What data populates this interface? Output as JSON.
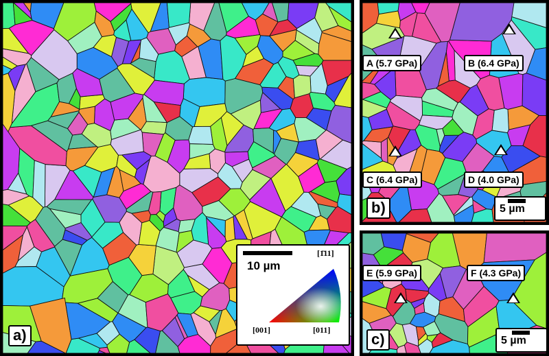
{
  "panels": {
    "a": {
      "letter": "a)"
    },
    "b": {
      "letter": "b)",
      "scale_label": "5 µm"
    },
    "c": {
      "letter": "c)",
      "scale_label": "5 µm"
    }
  },
  "scale_a": {
    "label": "10 µm"
  },
  "ipf": {
    "top": "[1̄11]",
    "left": "[001]",
    "right": "[011]"
  },
  "indents": [
    {
      "id": "A",
      "text": "A (5.7 GPa)"
    },
    {
      "id": "B",
      "text": "B (6.4 GPa)"
    },
    {
      "id": "C",
      "text": "C (6.4 GPa)"
    },
    {
      "id": "D",
      "text": "D (4.0 GPa)"
    },
    {
      "id": "E",
      "text": "E (5.9 GPa)"
    },
    {
      "id": "F",
      "text": "F (4.3 GPa)"
    }
  ],
  "grain_palette": [
    "#e8304a",
    "#f04fa0",
    "#ff2bd4",
    "#c83cf0",
    "#7a3cf5",
    "#3a4df0",
    "#2f8cf5",
    "#34c6f0",
    "#38e8c8",
    "#3ff08a",
    "#45e03a",
    "#9ef03a",
    "#e0f03a",
    "#f5d23a",
    "#f59a3a",
    "#f0603a",
    "#b0e8f0",
    "#d8c8f0",
    "#f5b0d0",
    "#a0f0c0",
    "#60c0a0",
    "#9060e0",
    "#e060c0",
    "#c0f080"
  ]
}
